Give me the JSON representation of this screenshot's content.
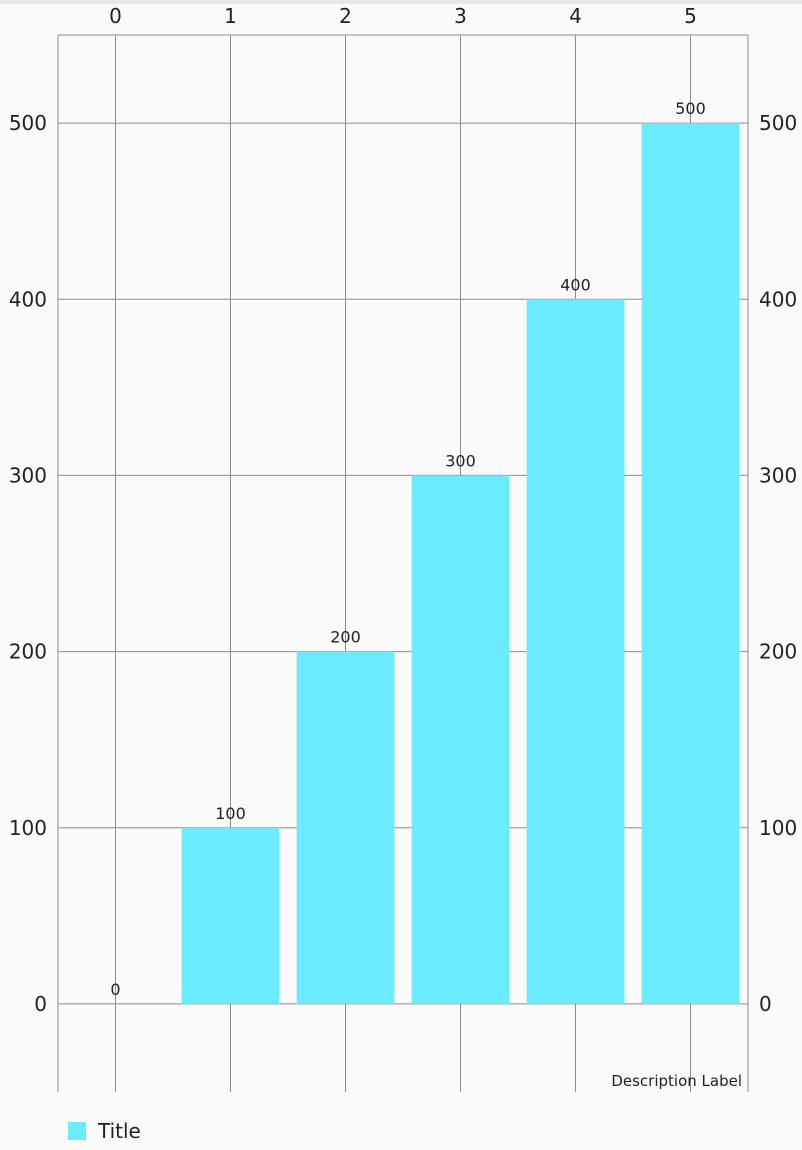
{
  "chart_data": {
    "type": "bar",
    "categories": [
      "0",
      "1",
      "2",
      "3",
      "4",
      "5"
    ],
    "x": [
      0,
      1,
      2,
      3,
      4,
      5
    ],
    "series": [
      {
        "name": "Title",
        "values": [
          0,
          100,
          200,
          300,
          400,
          500
        ],
        "color": "#6BEBFE"
      }
    ],
    "value_labels": [
      "0",
      "100",
      "200",
      "300",
      "400",
      "500"
    ],
    "x_tick_labels": [
      "0",
      "1",
      "2",
      "3",
      "4",
      "5"
    ],
    "y_tick_labels_left": [
      "0",
      "100",
      "200",
      "300",
      "400",
      "500"
    ],
    "y_tick_labels_right": [
      "0",
      "100",
      "200",
      "300",
      "400",
      "500"
    ],
    "y_ticks": [
      0,
      100,
      200,
      300,
      400,
      500
    ],
    "xlim": [
      -0.5,
      5.5
    ],
    "ylim": [
      -50,
      550
    ],
    "grid": true,
    "x_axis_position": "top",
    "y_axis_positions": [
      "left",
      "right"
    ],
    "legend_position": "bottom-left",
    "description": "Description Label",
    "colors": {
      "bar": "#6BEBFE",
      "grid": "#8c8c8c",
      "axis": "#8c8c8c",
      "text": "#222222",
      "background": "#fafafa"
    }
  },
  "legend": {
    "label": "Title",
    "color": "#6BEBFE"
  }
}
